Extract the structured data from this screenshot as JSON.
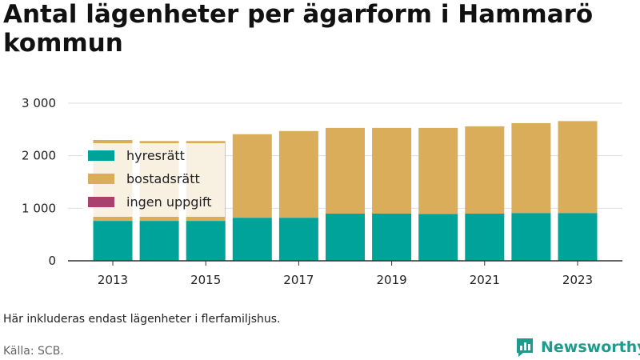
{
  "title": "Antal lägenheter per ägarform i Hammarö kommun",
  "note": "Här inkluderas endast lägenheter i flerfamiljshus.",
  "source": "Källa: SCB.",
  "logo_text": "Newsworthy",
  "colors": {
    "hyresratt": "#00a39a",
    "bostadsratt": "#d9ad5a",
    "ingen": "#a8416e",
    "grid": "#dddddd",
    "axis": "#333333",
    "logo": "#1d9c8e"
  },
  "chart_data": {
    "type": "bar",
    "stacked": true,
    "title": "Antal lägenheter per ägarform i Hammarö kommun",
    "categories": [
      "2013",
      "2014",
      "2015",
      "2016",
      "2017",
      "2018",
      "2019",
      "2020",
      "2021",
      "2022",
      "2023"
    ],
    "x_tick_labels": [
      "2013",
      "2015",
      "2017",
      "2019",
      "2021",
      "2023"
    ],
    "series": [
      {
        "name": "hyresrätt",
        "color": "#00a39a",
        "values": [
          760,
          760,
          760,
          820,
          820,
          900,
          900,
          890,
          900,
          910,
          910
        ]
      },
      {
        "name": "bostadsrätt",
        "color": "#d9ad5a",
        "values": [
          1540,
          1520,
          1520,
          1590,
          1650,
          1630,
          1630,
          1640,
          1660,
          1710,
          1750
        ]
      },
      {
        "name": "ingen uppgift",
        "color": "#a8416e",
        "values": [
          0,
          0,
          0,
          0,
          0,
          0,
          0,
          0,
          0,
          0,
          0
        ]
      }
    ],
    "ylim": [
      0,
      3000
    ],
    "yticks": [
      0,
      1000,
      2000,
      3000
    ],
    "ytick_labels": [
      "0",
      "1 000",
      "2 000",
      "3 000"
    ],
    "grid": true,
    "legend_position": "top-left inside plot",
    "xlabel": "",
    "ylabel": ""
  }
}
